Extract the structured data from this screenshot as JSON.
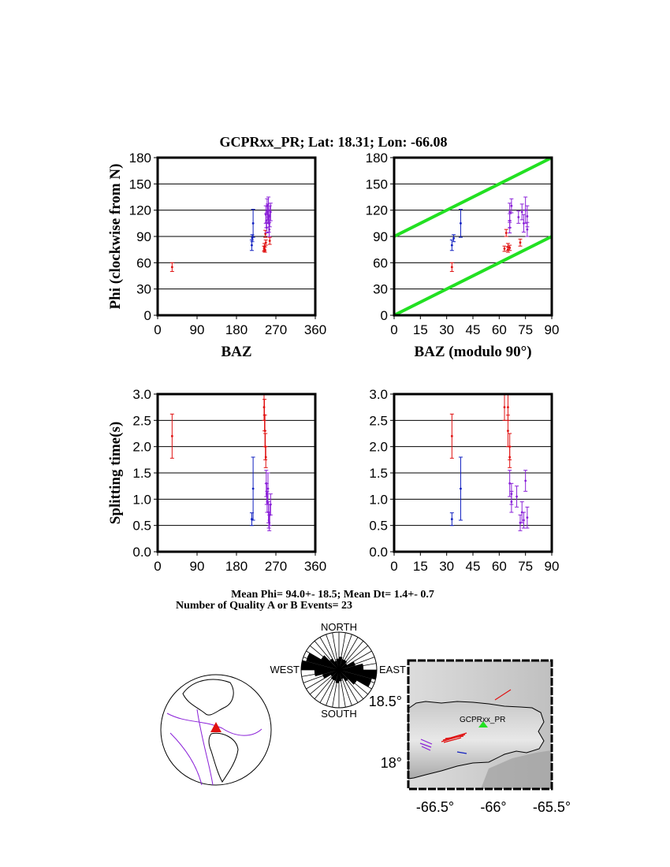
{
  "title": "GCPRxx_PR; Lat:  18.31;  Lon:  -66.08",
  "colors": {
    "quality_a": "#e01010",
    "quality_b": "#8a20d8",
    "quality_c": "#1020c0",
    "null_band": "#22e022"
  },
  "stats_line1": "Mean Phi= 94.0+- 18.5; Mean Dt=  1.4+-  0.7",
  "stats_line2": "Number of Quality A or B Events= 23",
  "chart_data": [
    {
      "id": "phi_vs_baz",
      "type": "scatter",
      "xlabel": "BAZ",
      "ylabel": "Phi (clockwise from N)",
      "xlim": [
        0,
        360
      ],
      "ylim": [
        0,
        180
      ],
      "xticks": [
        "0",
        "90",
        "180",
        "270",
        "360"
      ],
      "yticks": [
        "0",
        "30",
        "60",
        "90",
        "120",
        "150",
        "180"
      ],
      "grid": true,
      "points": [
        {
          "x": 33,
          "y": 55,
          "err": 5,
          "q": "quality_a"
        },
        {
          "x": 215,
          "y": 80,
          "err": 6,
          "q": "quality_c"
        },
        {
          "x": 216,
          "y": 88,
          "err": 4,
          "q": "quality_c"
        },
        {
          "x": 218,
          "y": 105,
          "err": 16,
          "q": "quality_c"
        },
        {
          "x": 243,
          "y": 76,
          "err": 3,
          "q": "quality_a"
        },
        {
          "x": 244,
          "y": 78,
          "err": 4,
          "q": "quality_a"
        },
        {
          "x": 245,
          "y": 75,
          "err": 3,
          "q": "quality_a"
        },
        {
          "x": 246,
          "y": 93,
          "err": 4,
          "q": "quality_a"
        },
        {
          "x": 247,
          "y": 83,
          "err": 3,
          "q": "quality_a"
        },
        {
          "x": 247,
          "y": 115,
          "err": 10,
          "q": "quality_b"
        },
        {
          "x": 248,
          "y": 108,
          "err": 8,
          "q": "quality_b"
        },
        {
          "x": 249,
          "y": 100,
          "err": 6,
          "q": "quality_b"
        },
        {
          "x": 250,
          "y": 125,
          "err": 8,
          "q": "quality_b"
        },
        {
          "x": 251,
          "y": 118,
          "err": 9,
          "q": "quality_b"
        },
        {
          "x": 252,
          "y": 112,
          "err": 7,
          "q": "quality_b"
        },
        {
          "x": 253,
          "y": 120,
          "err": 15,
          "q": "quality_b"
        },
        {
          "x": 254,
          "y": 105,
          "err": 10,
          "q": "quality_b"
        },
        {
          "x": 255,
          "y": 98,
          "err": 8,
          "q": "quality_b"
        },
        {
          "x": 256,
          "y": 113,
          "err": 12,
          "q": "quality_b"
        },
        {
          "x": 256,
          "y": 85,
          "err": 4,
          "q": "quality_a"
        },
        {
          "x": 258,
          "y": 118,
          "err": 10,
          "q": "quality_b"
        }
      ]
    },
    {
      "id": "phi_vs_baz_mod90",
      "type": "scatter",
      "xlabel": "BAZ (modulo 90°)",
      "ylabel": "",
      "xlim": [
        0,
        90
      ],
      "ylim": [
        0,
        180
      ],
      "xticks": [
        "0",
        "15",
        "30",
        "45",
        "60",
        "75",
        "90"
      ],
      "yticks": [
        "0",
        "30",
        "60",
        "90",
        "120",
        "150",
        "180"
      ],
      "grid": true,
      "reference_lines": [
        {
          "from": [
            0,
            0
          ],
          "to": [
            90,
            90
          ]
        },
        {
          "from": [
            0,
            90
          ],
          "to": [
            90,
            180
          ]
        }
      ],
      "points": [
        {
          "x": 33,
          "y": 55,
          "err": 5,
          "q": "quality_a"
        },
        {
          "x": 33,
          "y": 80,
          "err": 6,
          "q": "quality_c"
        },
        {
          "x": 34,
          "y": 88,
          "err": 4,
          "q": "quality_c"
        },
        {
          "x": 38,
          "y": 105,
          "err": 16,
          "q": "quality_c"
        },
        {
          "x": 63,
          "y": 76,
          "err": 3,
          "q": "quality_a"
        },
        {
          "x": 64,
          "y": 94,
          "err": 4,
          "q": "quality_a"
        },
        {
          "x": 65,
          "y": 78,
          "err": 4,
          "q": "quality_a"
        },
        {
          "x": 65,
          "y": 75,
          "err": 3,
          "q": "quality_a"
        },
        {
          "x": 66,
          "y": 108,
          "err": 8,
          "q": "quality_b"
        },
        {
          "x": 66,
          "y": 118,
          "err": 10,
          "q": "quality_b"
        },
        {
          "x": 66,
          "y": 100,
          "err": 6,
          "q": "quality_b"
        },
        {
          "x": 66,
          "y": 77,
          "err": 3,
          "q": "quality_a"
        },
        {
          "x": 67,
          "y": 125,
          "err": 8,
          "q": "quality_b"
        },
        {
          "x": 71,
          "y": 112,
          "err": 7,
          "q": "quality_b"
        },
        {
          "x": 72,
          "y": 83,
          "err": 4,
          "q": "quality_a"
        },
        {
          "x": 73,
          "y": 118,
          "err": 9,
          "q": "quality_b"
        },
        {
          "x": 74,
          "y": 105,
          "err": 10,
          "q": "quality_b"
        },
        {
          "x": 75,
          "y": 120,
          "err": 15,
          "q": "quality_b"
        },
        {
          "x": 76,
          "y": 98,
          "err": 8,
          "q": "quality_b"
        },
        {
          "x": 76,
          "y": 113,
          "err": 12,
          "q": "quality_b"
        }
      ]
    },
    {
      "id": "dt_vs_baz",
      "type": "scatter",
      "xlabel": "",
      "ylabel": "Splitting time(s)",
      "xlim": [
        0,
        360
      ],
      "ylim": [
        0,
        3
      ],
      "xticks": [
        "0",
        "90",
        "180",
        "270",
        "360"
      ],
      "yticks": [
        "0.0",
        "0.5",
        "1.0",
        "1.5",
        "2.0",
        "2.5",
        "3.0"
      ],
      "grid": true,
      "points": [
        {
          "x": 33,
          "y": 2.2,
          "err": 0.42,
          "q": "quality_a"
        },
        {
          "x": 215,
          "y": 0.62,
          "err": 0.12,
          "q": "quality_c"
        },
        {
          "x": 218,
          "y": 1.2,
          "err": 0.6,
          "q": "quality_c"
        },
        {
          "x": 243,
          "y": 2.75,
          "err": 0.25,
          "q": "quality_a"
        },
        {
          "x": 244,
          "y": 2.6,
          "err": 0.3,
          "q": "quality_a"
        },
        {
          "x": 245,
          "y": 2.3,
          "err": 0.3,
          "q": "quality_a"
        },
        {
          "x": 246,
          "y": 2.0,
          "err": 0.25,
          "q": "quality_a"
        },
        {
          "x": 247,
          "y": 1.8,
          "err": 0.2,
          "q": "quality_a"
        },
        {
          "x": 248,
          "y": 1.3,
          "err": 0.25,
          "q": "quality_b"
        },
        {
          "x": 249,
          "y": 1.1,
          "err": 0.2,
          "q": "quality_b"
        },
        {
          "x": 250,
          "y": 0.95,
          "err": 0.2,
          "q": "quality_b"
        },
        {
          "x": 252,
          "y": 1.2,
          "err": 0.3,
          "q": "quality_b"
        },
        {
          "x": 253,
          "y": 0.75,
          "err": 0.2,
          "q": "quality_b"
        },
        {
          "x": 254,
          "y": 0.6,
          "err": 0.15,
          "q": "quality_b"
        },
        {
          "x": 255,
          "y": 0.55,
          "err": 0.15,
          "q": "quality_b"
        },
        {
          "x": 256,
          "y": 0.7,
          "err": 0.2,
          "q": "quality_b"
        },
        {
          "x": 258,
          "y": 0.9,
          "err": 0.2,
          "q": "quality_b"
        }
      ]
    },
    {
      "id": "dt_vs_baz_mod90",
      "type": "scatter",
      "xlabel": "",
      "ylabel": "",
      "xlim": [
        0,
        90
      ],
      "ylim": [
        0,
        3
      ],
      "xticks": [
        "0",
        "15",
        "30",
        "45",
        "60",
        "75",
        "90"
      ],
      "yticks": [
        "0.0",
        "0.5",
        "1.0",
        "1.5",
        "2.0",
        "2.5",
        "3.0"
      ],
      "grid": true,
      "points": [
        {
          "x": 33,
          "y": 2.2,
          "err": 0.42,
          "q": "quality_a"
        },
        {
          "x": 33,
          "y": 0.62,
          "err": 0.12,
          "q": "quality_c"
        },
        {
          "x": 38,
          "y": 1.2,
          "err": 0.6,
          "q": "quality_c"
        },
        {
          "x": 63,
          "y": 2.75,
          "err": 0.25,
          "q": "quality_a"
        },
        {
          "x": 65,
          "y": 2.75,
          "err": 0.25,
          "q": "quality_a"
        },
        {
          "x": 65,
          "y": 2.3,
          "err": 0.3,
          "q": "quality_a"
        },
        {
          "x": 66,
          "y": 2.0,
          "err": 0.25,
          "q": "quality_a"
        },
        {
          "x": 66,
          "y": 1.8,
          "err": 0.2,
          "q": "quality_a"
        },
        {
          "x": 66,
          "y": 1.3,
          "err": 0.25,
          "q": "quality_b"
        },
        {
          "x": 67,
          "y": 1.1,
          "err": 0.2,
          "q": "quality_b"
        },
        {
          "x": 67,
          "y": 0.95,
          "err": 0.2,
          "q": "quality_b"
        },
        {
          "x": 70,
          "y": 1.05,
          "err": 0.2,
          "q": "quality_b"
        },
        {
          "x": 72,
          "y": 0.55,
          "err": 0.15,
          "q": "quality_b"
        },
        {
          "x": 73,
          "y": 0.75,
          "err": 0.2,
          "q": "quality_b"
        },
        {
          "x": 74,
          "y": 0.6,
          "err": 0.15,
          "q": "quality_b"
        },
        {
          "x": 75,
          "y": 1.35,
          "err": 0.2,
          "q": "quality_b"
        },
        {
          "x": 76,
          "y": 0.65,
          "err": 0.2,
          "q": "quality_b"
        }
      ]
    }
  ],
  "rose": {
    "north": "NORTH",
    "south": "SOUTH",
    "east": "EAST",
    "west": "WEST"
  },
  "map": {
    "station": "GCPRxx_PR",
    "lat_ticks": [
      "18.5°",
      "18°"
    ],
    "lon_ticks": [
      "-66.5°",
      "-66°",
      "-65.5°"
    ]
  }
}
